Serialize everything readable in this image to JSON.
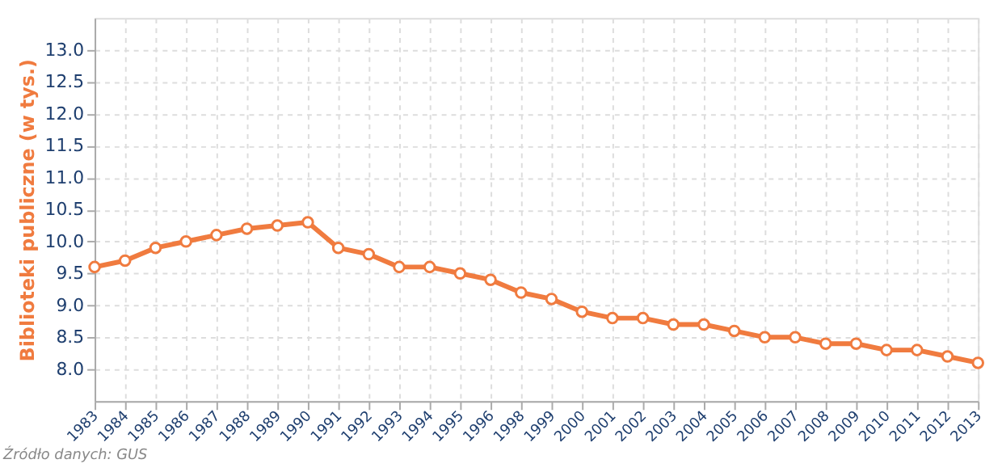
{
  "chart_data": {
    "type": "line",
    "ylabel": "Biblioteki publiczne (w tys.)",
    "categories": [
      "1983",
      "1984",
      "1985",
      "1986",
      "1987",
      "1988",
      "1989",
      "1990",
      "1991",
      "1992",
      "1993",
      "1994",
      "1995",
      "1996",
      "1998",
      "1999",
      "2000",
      "2001",
      "2002",
      "2003",
      "2004",
      "2005",
      "2006",
      "2007",
      "2008",
      "2009",
      "2010",
      "2011",
      "2012",
      "2013"
    ],
    "series": [
      {
        "color": "#f07b3f",
        "values": [
          9.6,
          9.7,
          9.9,
          10.0,
          10.1,
          10.2,
          10.25,
          10.3,
          9.9,
          9.8,
          9.6,
          9.6,
          9.5,
          9.4,
          9.2,
          9.1,
          8.9,
          8.8,
          8.8,
          8.7,
          8.7,
          8.6,
          8.5,
          8.5,
          8.4,
          8.4,
          8.3,
          8.3,
          8.2,
          8.1
        ]
      }
    ],
    "ylim": [
      7.5,
      13.5
    ],
    "yticks": [
      {
        "value": 8,
        "label": "8.0"
      },
      {
        "value": 8.5,
        "label": "8.5"
      },
      {
        "value": 9,
        "label": "9.0"
      },
      {
        "value": 9.5,
        "label": "9.5"
      },
      {
        "value": 10,
        "label": "10.0"
      },
      {
        "value": 10.5,
        "label": "10.5"
      },
      {
        "value": 11,
        "label": "11.0"
      },
      {
        "value": 11.5,
        "label": "11.5"
      },
      {
        "value": 12,
        "label": "12.0"
      },
      {
        "value": 12.5,
        "label": "12.5"
      },
      {
        "value": 13,
        "label": "13.0"
      }
    ],
    "grid": true,
    "marker": "circle",
    "line_style": "solid",
    "legend": false,
    "annotations": [
      "Źródło danych:  GUS"
    ]
  }
}
